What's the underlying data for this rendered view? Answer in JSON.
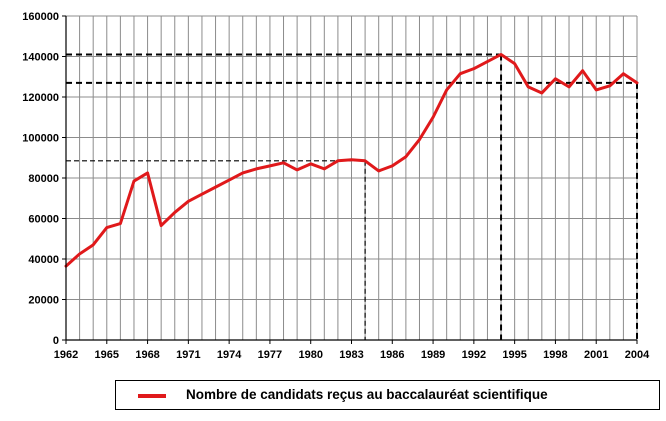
{
  "chart_data": {
    "type": "line",
    "title": "",
    "xlabel": "",
    "ylabel": "",
    "x": [
      1962,
      1963,
      1964,
      1965,
      1966,
      1967,
      1968,
      1969,
      1970,
      1971,
      1972,
      1973,
      1974,
      1975,
      1976,
      1977,
      1978,
      1979,
      1980,
      1981,
      1982,
      1983,
      1984,
      1985,
      1986,
      1987,
      1988,
      1989,
      1990,
      1991,
      1992,
      1993,
      1994,
      1995,
      1996,
      1997,
      1998,
      1999,
      2000,
      2001,
      2002,
      2003,
      2004
    ],
    "series": [
      {
        "name": "Nombre de candidats reçus au baccalauréat scientifique",
        "color": "#e0191b",
        "values": [
          36500,
          42500,
          47000,
          55500,
          57500,
          78500,
          82500,
          56500,
          63000,
          68500,
          72000,
          75500,
          79000,
          82500,
          84500,
          86000,
          87500,
          84000,
          87000,
          84500,
          88500,
          89000,
          88500,
          83500,
          86000,
          90500,
          99000,
          110000,
          123500,
          131500,
          134000,
          137500,
          141000,
          136500,
          125000,
          122000,
          129000,
          125000,
          133000,
          123500,
          125500,
          131500,
          127000
        ]
      }
    ],
    "xticks": [
      "1962",
      "1965",
      "1968",
      "1971",
      "1974",
      "1977",
      "1980",
      "1983",
      "1986",
      "1989",
      "1992",
      "1995",
      "1998",
      "2001",
      "2004"
    ],
    "yticks": [
      "0",
      "20000",
      "40000",
      "60000",
      "80000",
      "100000",
      "120000",
      "140000",
      "160000"
    ],
    "ylim": [
      0,
      160000
    ],
    "xlim": [
      1962,
      2004
    ],
    "grid": "vertical lines at every year, horizontal lines at every y tick",
    "legend": "bottom",
    "reference_lines": [
      {
        "style": "dashed",
        "from_year": 1984,
        "value": 88500
      },
      {
        "style": "dashed",
        "from_year": 1994,
        "value": 141000
      },
      {
        "style": "dashed",
        "from_year": 2004,
        "value": 127000
      }
    ]
  },
  "legend": {
    "label": "Nombre de candidats reçus au baccalauréat scientifique",
    "color": "#e0191b"
  }
}
